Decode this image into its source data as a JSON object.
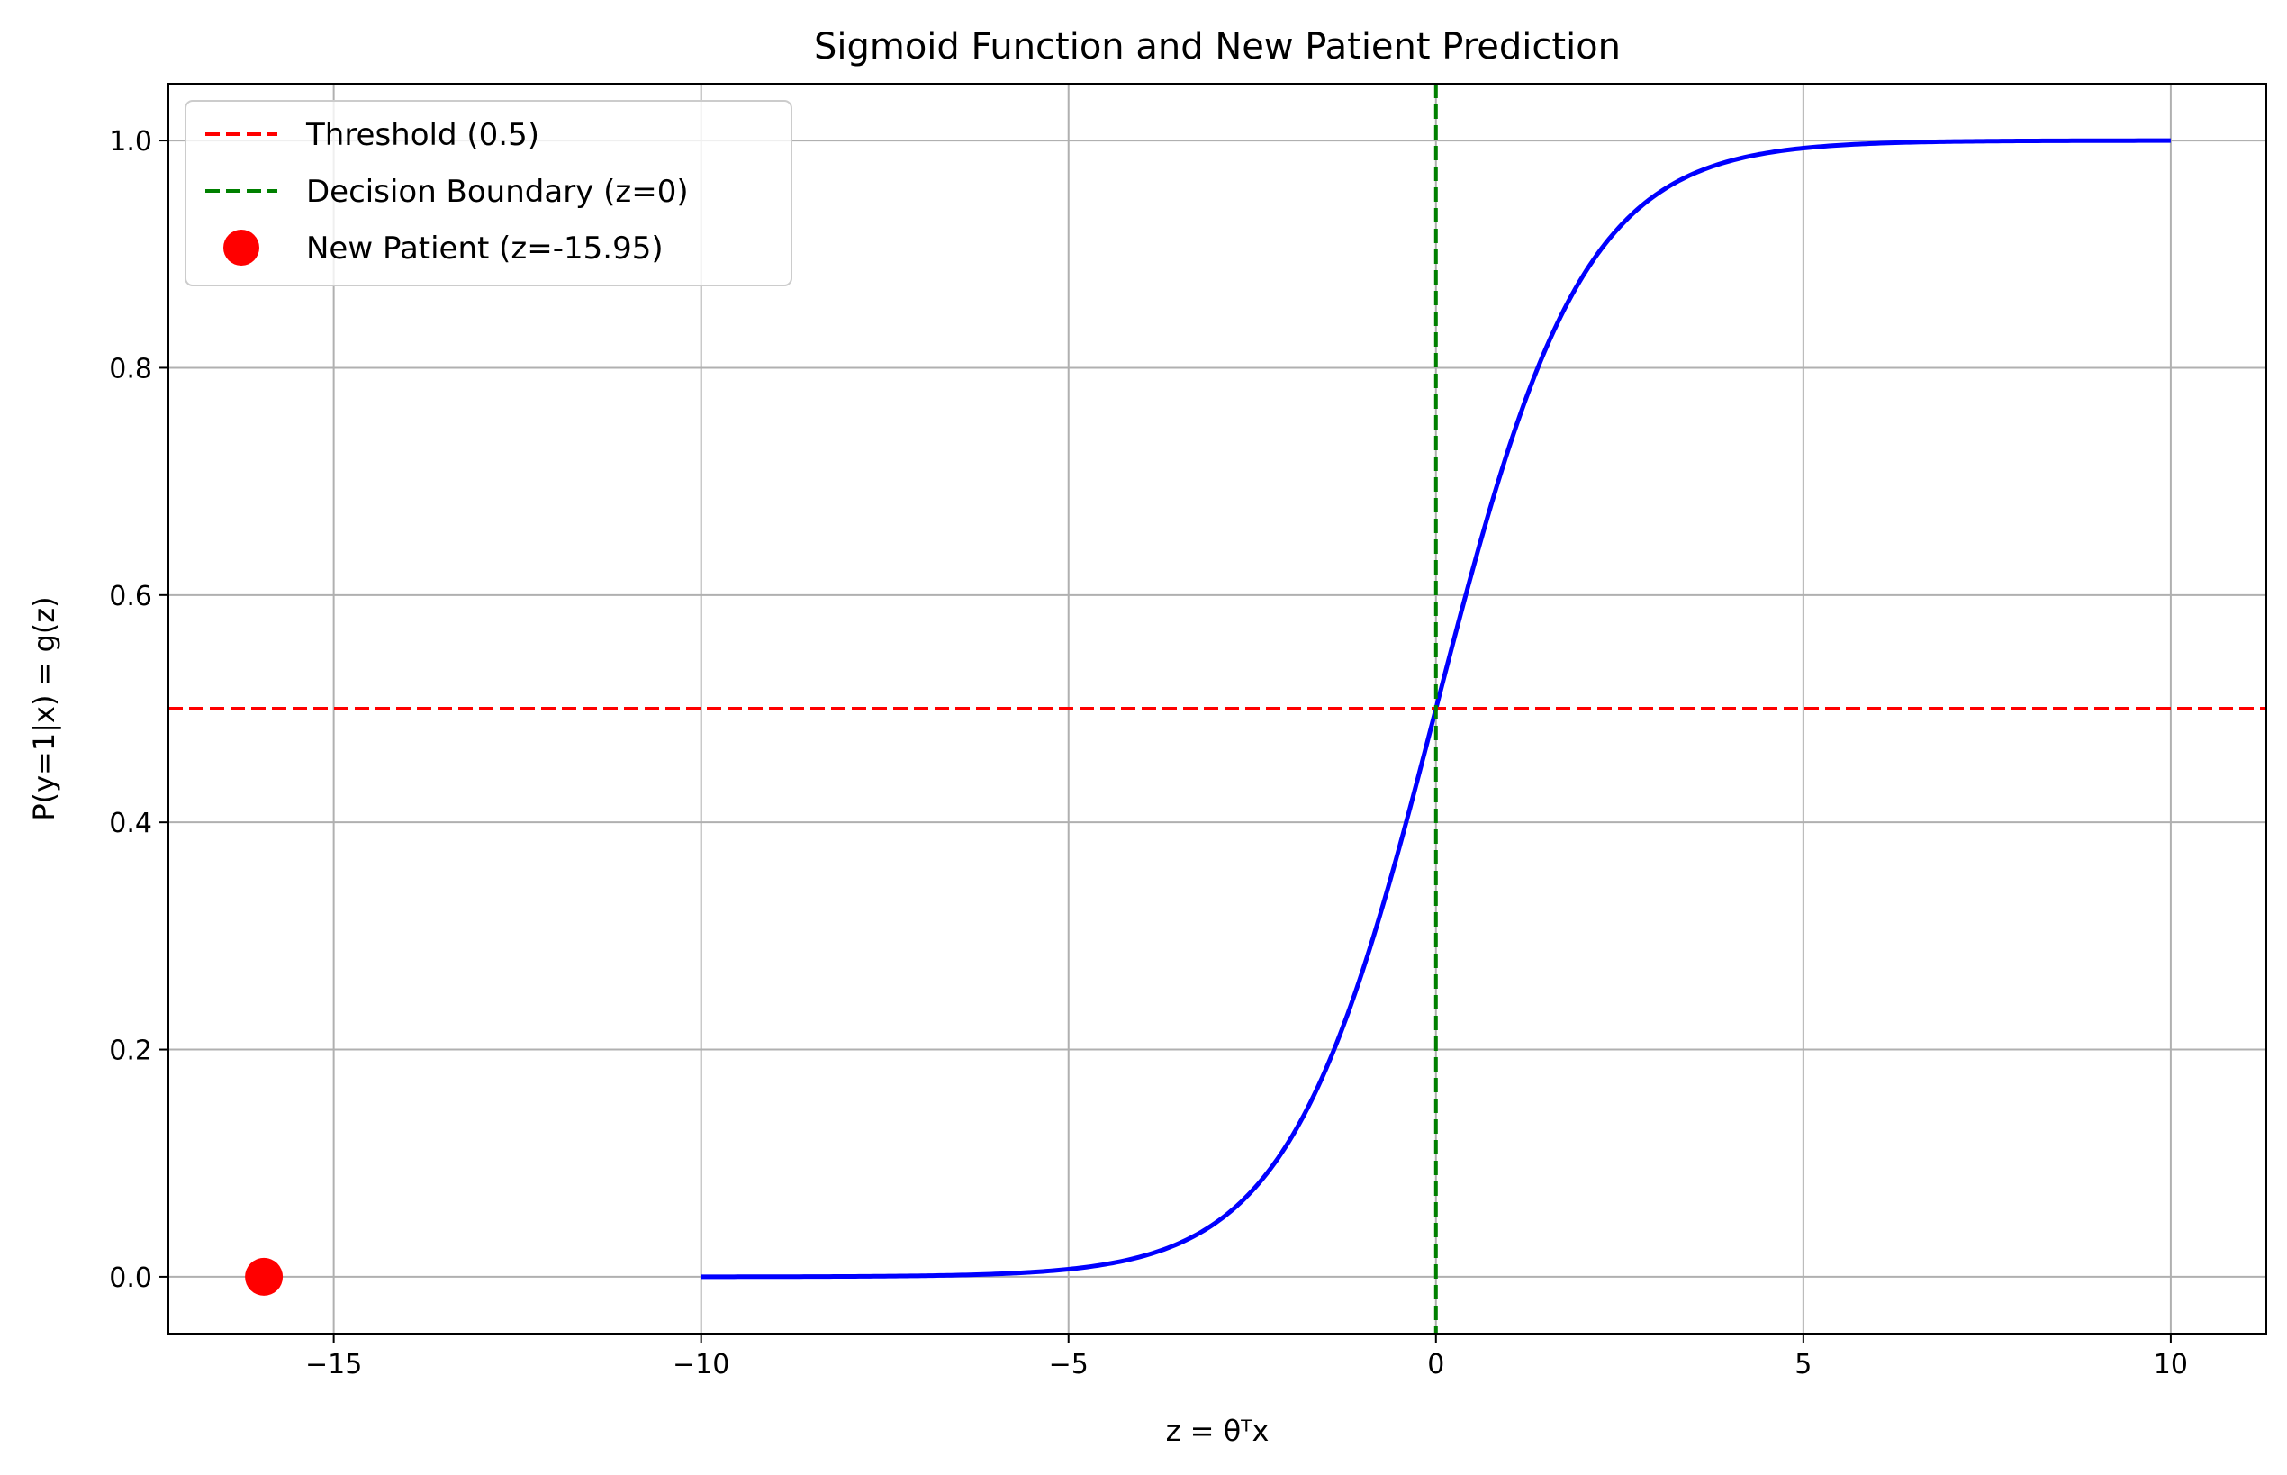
{
  "chart_data": {
    "type": "line",
    "title": "Sigmoid Function and New Patient Prediction",
    "xlabel": "z = θᵀx",
    "ylabel": "P(y=1|x) = g(z)",
    "xlim": [
      -17.25,
      11.3
    ],
    "ylim": [
      -0.05,
      1.05
    ],
    "grid": true,
    "legend_position": "top-left",
    "x_ticks": [
      {
        "value": -15,
        "label": "−15"
      },
      {
        "value": -10,
        "label": "−10"
      },
      {
        "value": -5,
        "label": "−5"
      },
      {
        "value": 0,
        "label": "0"
      },
      {
        "value": 5,
        "label": "5"
      },
      {
        "value": 10,
        "label": "10"
      }
    ],
    "y_ticks": [
      {
        "value": 0.0,
        "label": "0.0"
      },
      {
        "value": 0.2,
        "label": "0.2"
      },
      {
        "value": 0.4,
        "label": "0.4"
      },
      {
        "value": 0.6,
        "label": "0.6"
      },
      {
        "value": 0.8,
        "label": "0.8"
      },
      {
        "value": 1.0,
        "label": "1.0"
      }
    ],
    "series": [
      {
        "kind": "line",
        "color": "#0000ff",
        "function": "sigmoid",
        "x_range": [
          -10,
          10
        ]
      },
      {
        "name": "Threshold (0.5)",
        "kind": "hline",
        "y": 0.5,
        "color": "#ff0000",
        "style": "dashed"
      },
      {
        "name": "Decision Boundary (z=0)",
        "kind": "vline",
        "x": 0,
        "color": "#008000",
        "style": "dashed"
      },
      {
        "name": "New Patient (z=-15.95)",
        "kind": "scatter",
        "x": -15.95,
        "y": 0.0,
        "color": "#ff0000"
      }
    ]
  }
}
